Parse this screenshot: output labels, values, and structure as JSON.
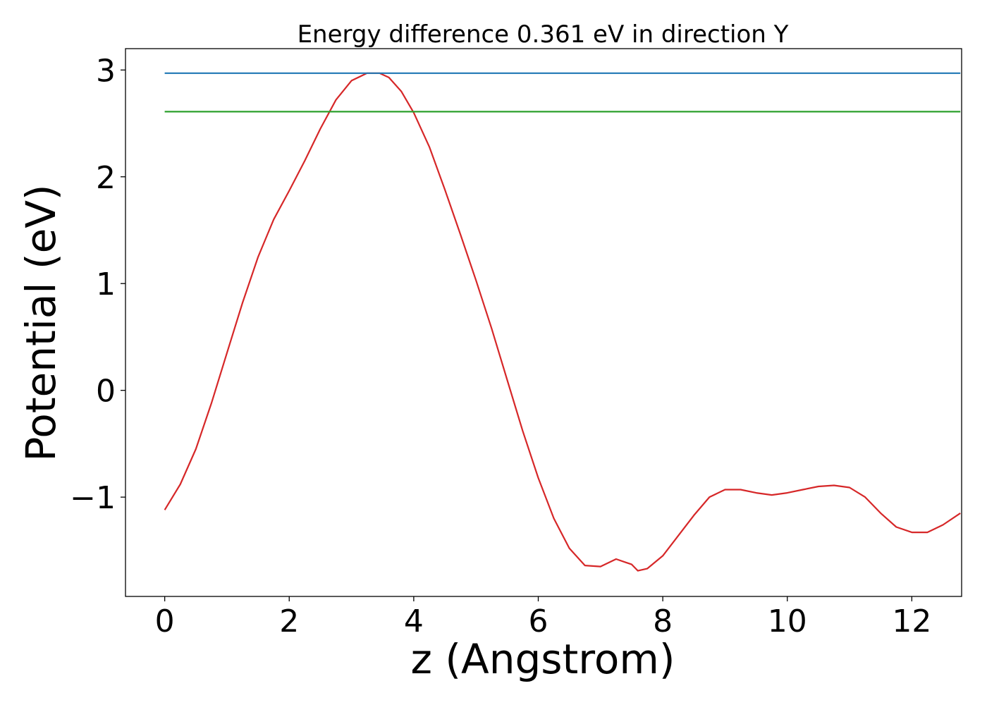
{
  "chart_data": {
    "type": "line",
    "title": "Energy difference 0.361 eV in direction Y",
    "xlabel": "z (Angstrom)",
    "ylabel": "Potential (eV)",
    "xlim": [
      -0.63,
      12.8
    ],
    "ylim": [
      -1.93,
      3.2
    ],
    "xticks": [
      0,
      2,
      4,
      6,
      8,
      10,
      12
    ],
    "xtick_labels": [
      "0",
      "2",
      "4",
      "6",
      "8",
      "10",
      "12"
    ],
    "yticks": [
      -1,
      0,
      1,
      2,
      3
    ],
    "ytick_labels": [
      "−1",
      "0",
      "1",
      "2",
      "3"
    ],
    "grid": false,
    "series": [
      {
        "color": "#d62728",
        "x": [
          0,
          0.25,
          0.5,
          0.75,
          1.0,
          1.25,
          1.5,
          1.75,
          2.0,
          2.25,
          2.5,
          2.75,
          3.0,
          3.25,
          3.45,
          3.6,
          3.8,
          4.0,
          4.25,
          4.5,
          4.75,
          5.0,
          5.25,
          5.5,
          5.75,
          6.0,
          6.25,
          6.5,
          6.75,
          7.0,
          7.25,
          7.5,
          7.6,
          7.75,
          8.0,
          8.25,
          8.5,
          8.75,
          9.0,
          9.25,
          9.5,
          9.75,
          10.0,
          10.25,
          10.5,
          10.75,
          11.0,
          11.25,
          11.5,
          11.75,
          12.0,
          12.25,
          12.5,
          12.78
        ],
        "y": [
          -1.12,
          -0.88,
          -0.55,
          -0.12,
          0.35,
          0.82,
          1.25,
          1.6,
          1.87,
          2.15,
          2.45,
          2.72,
          2.9,
          2.97,
          2.97,
          2.93,
          2.8,
          2.6,
          2.28,
          1.88,
          1.46,
          1.03,
          0.58,
          0.1,
          -0.38,
          -0.82,
          -1.2,
          -1.48,
          -1.64,
          -1.65,
          -1.58,
          -1.63,
          -1.69,
          -1.67,
          -1.55,
          -1.36,
          -1.17,
          -1.0,
          -0.93,
          -0.93,
          -0.96,
          -0.98,
          -0.96,
          -0.93,
          -0.9,
          -0.89,
          -0.91,
          -1.0,
          -1.15,
          -1.28,
          -1.33,
          -1.33,
          -1.26,
          -1.15
        ]
      },
      {
        "color": "#1f77b4",
        "x": [
          0,
          12.78
        ],
        "y": [
          2.97,
          2.97
        ]
      },
      {
        "color": "#2ca02c",
        "x": [
          0,
          12.78
        ],
        "y": [
          2.61,
          2.61
        ]
      }
    ]
  }
}
